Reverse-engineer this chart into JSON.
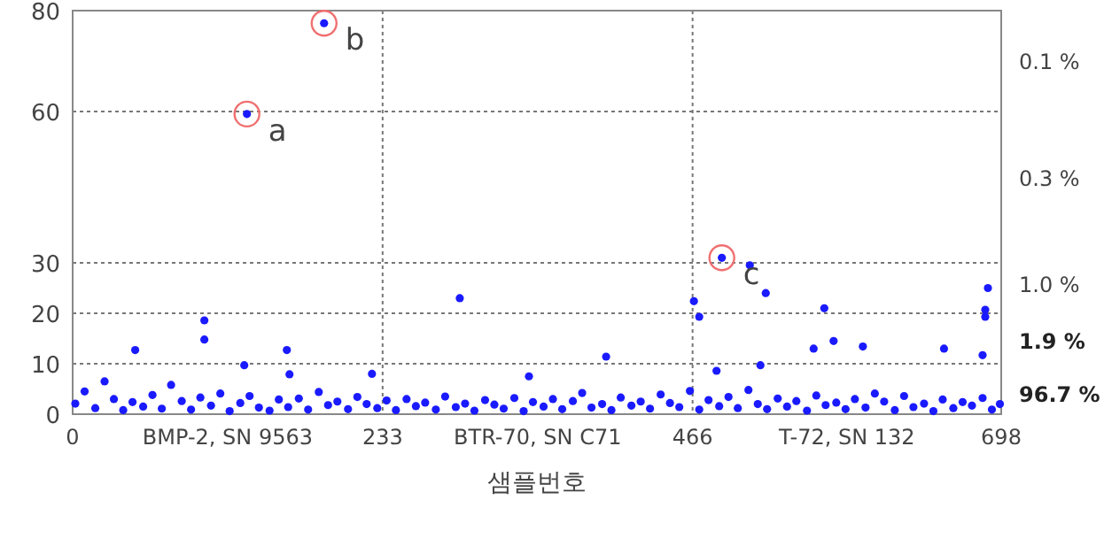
{
  "chart_data": {
    "type": "scatter",
    "xlabel": "샘플번호",
    "xlim": [
      0,
      698
    ],
    "ylim": [
      0,
      80
    ],
    "xticks": [
      0,
      {
        "value": 116.5,
        "label": "BMP-2, SN 9563"
      },
      233,
      {
        "value": 349.5,
        "label": "BTR-70, SN C71"
      },
      466,
      {
        "value": 582,
        "label": "T-72, SN 132"
      },
      698
    ],
    "yticks": [
      0,
      10,
      20,
      30,
      60,
      80
    ],
    "grid": true,
    "marker": "circle",
    "series": [
      {
        "color": "#1a1aff",
        "x": [
          47,
          99,
          99,
          129,
          131,
          161,
          163,
          189,
          225,
          291,
          343,
          401,
          467,
          471,
          484,
          488,
          509,
          517,
          521,
          557,
          565,
          572,
          594,
          655,
          684,
          686,
          686,
          688,
          2,
          9,
          17,
          24,
          31,
          38,
          45,
          53,
          60,
          67,
          74,
          82,
          89,
          96,
          104,
          111,
          118,
          126,
          133,
          140,
          148,
          155,
          162,
          170,
          177,
          185,
          192,
          199,
          207,
          214,
          221,
          229,
          236,
          243,
          251,
          258,
          265,
          273,
          280,
          288,
          295,
          302,
          310,
          317,
          324,
          332,
          339,
          346,
          354,
          361,
          368,
          376,
          383,
          390,
          398,
          405,
          412,
          420,
          427,
          434,
          442,
          449,
          456,
          464,
          471,
          478,
          486,
          493,
          500,
          508,
          515,
          522,
          530,
          537,
          544,
          552,
          559,
          566,
          574,
          581,
          588,
          596,
          603,
          610,
          618,
          625,
          632,
          640,
          647,
          654,
          662,
          669,
          676,
          684,
          691,
          697
        ],
        "values": [
          12.7,
          18.6,
          14.8,
          9.7,
          59.5,
          12.7,
          7.9,
          77.5,
          8,
          23,
          7.5,
          11.4,
          22.4,
          19.3,
          8.6,
          31,
          29.5,
          9.7,
          24,
          13,
          21,
          14.5,
          13.4,
          13,
          11.7,
          19.3,
          20.7,
          25,
          2.1,
          4.5,
          1.2,
          6.5,
          3.0,
          0.8,
          2.4,
          1.5,
          3.8,
          1.1,
          5.8,
          2.6,
          0.9,
          3.3,
          1.7,
          4.1,
          0.6,
          2.2,
          3.6,
          1.3,
          0.7,
          2.9,
          1.4,
          3.1,
          0.9,
          4.4,
          1.8,
          2.5,
          1.0,
          3.4,
          2.0,
          1.2,
          2.7,
          0.8,
          3.0,
          1.6,
          2.3,
          0.9,
          3.5,
          1.4,
          2.1,
          0.7,
          2.8,
          1.9,
          1.1,
          3.2,
          0.6,
          2.4,
          1.5,
          3.0,
          1.0,
          2.6,
          4.2,
          1.3,
          2.0,
          0.8,
          3.3,
          1.7,
          2.5,
          1.1,
          3.9,
          2.2,
          1.4,
          4.6,
          0.9,
          2.8,
          1.6,
          3.4,
          1.2,
          4.8,
          2.0,
          1.0,
          3.1,
          1.5,
          2.6,
          0.7,
          3.7,
          1.8,
          2.3,
          1.0,
          3.0,
          1.3,
          4.1,
          2.5,
          0.8,
          3.6,
          1.4,
          2.1,
          0.6,
          2.9,
          1.2,
          2.4,
          1.7,
          3.2,
          0.9,
          2.0
        ]
      }
    ],
    "annotations": [
      {
        "text": "a",
        "x": 131,
        "y": 59.5
      },
      {
        "text": "b",
        "x": 189,
        "y": 77.5
      },
      {
        "text": "c",
        "x": 488,
        "y": 31
      },
      "0.1 %",
      "0.3 %",
      "1.0 %",
      "1.9 %",
      "96.7 %"
    ]
  }
}
